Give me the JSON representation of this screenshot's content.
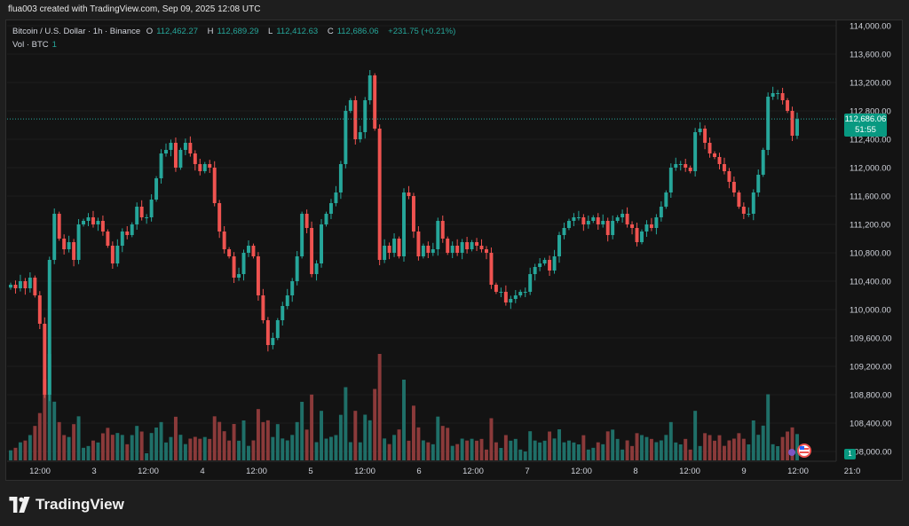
{
  "caption": "flua003 created with TradingView.com, Sep 09, 2025 12:08 UTC",
  "legend": {
    "symbol": "Bitcoin / U.S. Dollar · 1h · Binance",
    "o_label": "O",
    "o": "112,462.27",
    "h_label": "H",
    "h": "112,689.29",
    "l_label": "L",
    "l": "112,412.63",
    "c_label": "C",
    "c": "112,686.06",
    "change": "+231.75 (+0.21%)",
    "vol_label": "Vol · BTC",
    "vol_value": "1"
  },
  "price_tag": {
    "price": "112,686.06",
    "countdown": "51:55"
  },
  "volume_tag": "1",
  "brand": "TradingView",
  "colors": {
    "up": "#26a69a",
    "down": "#ef5350",
    "up_vol": "#1f6f68",
    "down_vol": "#8b3a3a",
    "background": "#131313",
    "grid": "#2a2a2a",
    "axis_text": "#d1d4dc"
  },
  "chart_data": {
    "type": "candlestick",
    "y_axis_ticks": [
      "114,000.00",
      "113,600.00",
      "113,200.00",
      "112,800.00",
      "112,400.00",
      "112,000.00",
      "111,600.00",
      "111,200.00",
      "110,800.00",
      "110,400.00",
      "110,000.00",
      "109,600.00",
      "109,200.00",
      "108,800.00",
      "108,400.00",
      "108,000.00"
    ],
    "y_range": [
      108000,
      114000
    ],
    "x_axis_ticks": [
      "12:00",
      "3",
      "12:00",
      "4",
      "12:00",
      "5",
      "12:00",
      "6",
      "12:00",
      "7",
      "12:00",
      "8",
      "12:00",
      "9",
      "12:00",
      "21:0"
    ],
    "last_price": 112686.06,
    "closes": [
      110350,
      110300,
      110400,
      110300,
      110450,
      110200,
      109800,
      108800,
      110700,
      111350,
      111000,
      110850,
      110950,
      110700,
      111200,
      111250,
      111300,
      111200,
      111250,
      111100,
      110900,
      110650,
      110900,
      111100,
      111050,
      111200,
      111450,
      111300,
      111300,
      111550,
      111850,
      112200,
      112250,
      112350,
      112000,
      112250,
      112350,
      112200,
      112050,
      111950,
      112050,
      112000,
      111500,
      111100,
      110850,
      110750,
      110450,
      110500,
      110800,
      110900,
      110750,
      110200,
      109850,
      109500,
      109600,
      109850,
      110050,
      110200,
      110400,
      110750,
      111350,
      111150,
      110500,
      110650,
      111200,
      111350,
      111500,
      111650,
      112050,
      112800,
      112950,
      112400,
      112500,
      112950,
      113300,
      112550,
      110700,
      110900,
      110800,
      111000,
      110750,
      111650,
      111600,
      111100,
      110750,
      110900,
      110800,
      110850,
      111250,
      111000,
      110800,
      110900,
      110800,
      110950,
      110850,
      110950,
      110900,
      110850,
      110800,
      110350,
      110250,
      110250,
      110100,
      110150,
      110200,
      110250,
      110250,
      110500,
      110600,
      110650,
      110700,
      110550,
      110750,
      111050,
      111150,
      111250,
      111300,
      111300,
      111200,
      111250,
      111300,
      111200,
      111250,
      111050,
      111250,
      111300,
      111350,
      111200,
      111150,
      110950,
      111100,
      111200,
      111150,
      111300,
      111450,
      111650,
      112000,
      112050,
      112050,
      112000,
      111950,
      112500,
      112550,
      112350,
      112200,
      112150,
      112050,
      111950,
      111800,
      111650,
      111450,
      111350,
      111350,
      111650,
      111900,
      112250,
      113000,
      113050,
      113050,
      112950,
      112800,
      112450,
      112686
    ]
  }
}
